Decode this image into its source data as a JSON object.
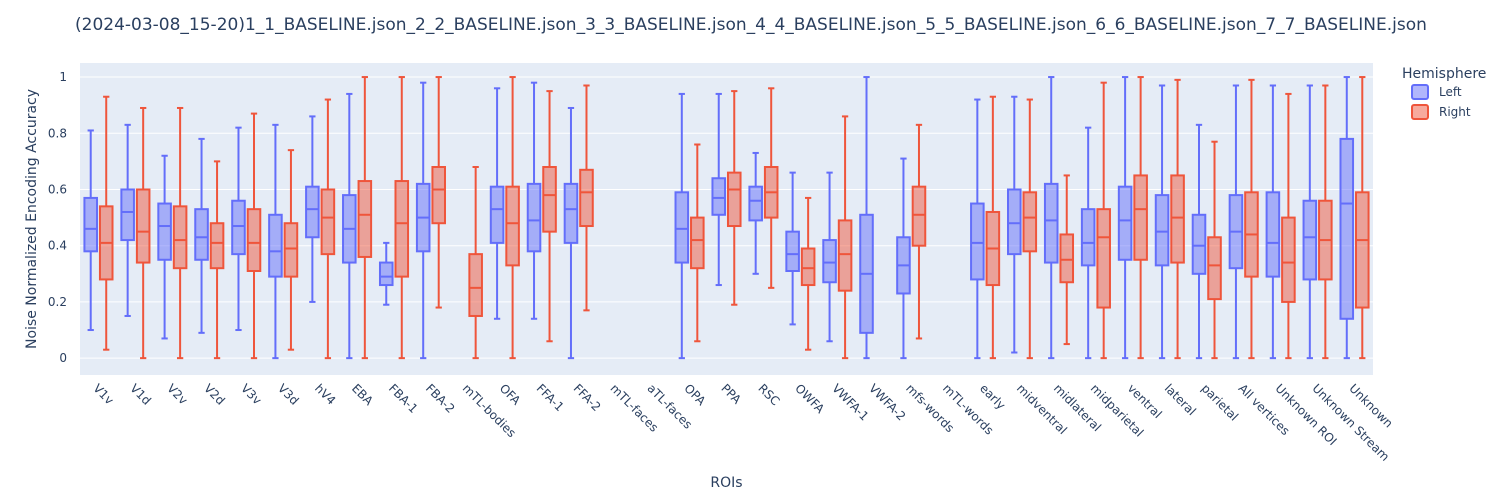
{
  "chart_data": {
    "type": "box",
    "title": "(2024-03-08_15-20)1_1_BASELINE.json_2_2_BASELINE.json_3_3_BASELINE.json_4_4_BASELINE.json_5_5_BASELINE.json_6_6_BASELINE.json_7_7_BASELINE.json",
    "xlabel": "ROIs",
    "ylabel": "Noise Normalized Encoding Accuracy",
    "ylim": [
      -0.06,
      1.05
    ],
    "yticks": [
      0,
      0.2,
      0.4,
      0.6,
      0.8,
      1
    ],
    "grid": true,
    "legend": {
      "title": "Hemisphere",
      "placement": "top-right"
    },
    "categories": [
      "V1v",
      "V1d",
      "V2v",
      "V2d",
      "V3v",
      "V3d",
      "hV4",
      "EBA",
      "FBA-1",
      "FBA-2",
      "mTL-bodies",
      "OFA",
      "FFA-1",
      "FFA-2",
      "mTL-faces",
      "aTL-faces",
      "OPA",
      "PPA",
      "RSC",
      "OWFA",
      "VWFA-1",
      "VWFA-2",
      "mfs-words",
      "mTL-words",
      "early",
      "midventral",
      "midlateral",
      "midparietal",
      "ventral",
      "lateral",
      "parietal",
      "All vertices",
      "Unknown ROI",
      "Unknown Stream",
      "Unknown"
    ],
    "series": [
      {
        "name": "Left",
        "color": "#636efa",
        "boxes": [
          {
            "min": 0.1,
            "q1": 0.38,
            "median": 0.46,
            "q3": 0.57,
            "max": 0.81
          },
          {
            "min": 0.15,
            "q1": 0.42,
            "median": 0.52,
            "q3": 0.6,
            "max": 0.83
          },
          {
            "min": 0.07,
            "q1": 0.35,
            "median": 0.47,
            "q3": 0.55,
            "max": 0.72
          },
          {
            "min": 0.09,
            "q1": 0.35,
            "median": 0.43,
            "q3": 0.53,
            "max": 0.78
          },
          {
            "min": 0.1,
            "q1": 0.37,
            "median": 0.47,
            "q3": 0.56,
            "max": 0.82
          },
          {
            "min": 0.0,
            "q1": 0.29,
            "median": 0.38,
            "q3": 0.51,
            "max": 0.83
          },
          {
            "min": 0.2,
            "q1": 0.43,
            "median": 0.53,
            "q3": 0.61,
            "max": 0.86
          },
          {
            "min": 0.0,
            "q1": 0.34,
            "median": 0.46,
            "q3": 0.58,
            "max": 0.94
          },
          {
            "min": 0.19,
            "q1": 0.26,
            "median": 0.29,
            "q3": 0.34,
            "max": 0.41
          },
          {
            "min": 0.0,
            "q1": 0.38,
            "median": 0.5,
            "q3": 0.62,
            "max": 0.98
          },
          null,
          {
            "min": 0.14,
            "q1": 0.41,
            "median": 0.53,
            "q3": 0.61,
            "max": 0.96
          },
          {
            "min": 0.14,
            "q1": 0.38,
            "median": 0.49,
            "q3": 0.62,
            "max": 0.98
          },
          {
            "min": 0.0,
            "q1": 0.41,
            "median": 0.53,
            "q3": 0.62,
            "max": 0.89
          },
          null,
          null,
          {
            "min": 0.0,
            "q1": 0.34,
            "median": 0.46,
            "q3": 0.59,
            "max": 0.94
          },
          {
            "min": 0.26,
            "q1": 0.51,
            "median": 0.57,
            "q3": 0.64,
            "max": 0.94
          },
          {
            "min": 0.3,
            "q1": 0.49,
            "median": 0.56,
            "q3": 0.61,
            "max": 0.73
          },
          {
            "min": 0.12,
            "q1": 0.31,
            "median": 0.37,
            "q3": 0.45,
            "max": 0.66
          },
          {
            "min": 0.06,
            "q1": 0.27,
            "median": 0.34,
            "q3": 0.42,
            "max": 0.66
          },
          {
            "min": 0.0,
            "q1": 0.09,
            "median": 0.3,
            "q3": 0.51,
            "max": 1.0
          },
          {
            "min": 0.0,
            "q1": 0.23,
            "median": 0.33,
            "q3": 0.43,
            "max": 0.71
          },
          null,
          {
            "min": 0.0,
            "q1": 0.28,
            "median": 0.41,
            "q3": 0.55,
            "max": 0.92
          },
          {
            "min": 0.02,
            "q1": 0.37,
            "median": 0.48,
            "q3": 0.6,
            "max": 0.93
          },
          {
            "min": 0.0,
            "q1": 0.34,
            "median": 0.49,
            "q3": 0.62,
            "max": 1.0
          },
          {
            "min": 0.0,
            "q1": 0.33,
            "median": 0.41,
            "q3": 0.53,
            "max": 0.82
          },
          {
            "min": 0.0,
            "q1": 0.35,
            "median": 0.49,
            "q3": 0.61,
            "max": 1.0
          },
          {
            "min": 0.0,
            "q1": 0.33,
            "median": 0.45,
            "q3": 0.58,
            "max": 0.97
          },
          {
            "min": 0.0,
            "q1": 0.3,
            "median": 0.4,
            "q3": 0.51,
            "max": 0.83
          },
          {
            "min": 0.0,
            "q1": 0.32,
            "median": 0.45,
            "q3": 0.58,
            "max": 0.97
          },
          {
            "min": 0.0,
            "q1": 0.29,
            "median": 0.41,
            "q3": 0.59,
            "max": 0.97
          },
          {
            "min": 0.0,
            "q1": 0.28,
            "median": 0.43,
            "q3": 0.56,
            "max": 0.97
          },
          {
            "min": 0.0,
            "q1": 0.14,
            "median": 0.55,
            "q3": 0.78,
            "max": 1.0
          }
        ]
      },
      {
        "name": "Right",
        "color": "#ef553b",
        "boxes": [
          {
            "min": 0.03,
            "q1": 0.28,
            "median": 0.41,
            "q3": 0.54,
            "max": 0.93
          },
          {
            "min": 0.0,
            "q1": 0.34,
            "median": 0.45,
            "q3": 0.6,
            "max": 0.89
          },
          {
            "min": 0.0,
            "q1": 0.32,
            "median": 0.42,
            "q3": 0.54,
            "max": 0.89
          },
          {
            "min": 0.0,
            "q1": 0.32,
            "median": 0.41,
            "q3": 0.48,
            "max": 0.7
          },
          {
            "min": 0.0,
            "q1": 0.31,
            "median": 0.41,
            "q3": 0.53,
            "max": 0.87
          },
          {
            "min": 0.03,
            "q1": 0.29,
            "median": 0.39,
            "q3": 0.48,
            "max": 0.74
          },
          {
            "min": 0.0,
            "q1": 0.37,
            "median": 0.5,
            "q3": 0.6,
            "max": 0.92
          },
          {
            "min": 0.0,
            "q1": 0.36,
            "median": 0.51,
            "q3": 0.63,
            "max": 1.0
          },
          {
            "min": 0.0,
            "q1": 0.29,
            "median": 0.48,
            "q3": 0.63,
            "max": 1.0
          },
          {
            "min": 0.18,
            "q1": 0.48,
            "median": 0.6,
            "q3": 0.68,
            "max": 1.0
          },
          {
            "min": 0.0,
            "q1": 0.15,
            "median": 0.25,
            "q3": 0.37,
            "max": 0.68
          },
          {
            "min": 0.0,
            "q1": 0.33,
            "median": 0.48,
            "q3": 0.61,
            "max": 1.0
          },
          {
            "min": 0.06,
            "q1": 0.45,
            "median": 0.58,
            "q3": 0.68,
            "max": 0.95
          },
          {
            "min": 0.17,
            "q1": 0.47,
            "median": 0.59,
            "q3": 0.67,
            "max": 0.97
          },
          null,
          null,
          {
            "min": 0.06,
            "q1": 0.32,
            "median": 0.42,
            "q3": 0.5,
            "max": 0.76
          },
          {
            "min": 0.19,
            "q1": 0.47,
            "median": 0.6,
            "q3": 0.66,
            "max": 0.95
          },
          {
            "min": 0.25,
            "q1": 0.5,
            "median": 0.59,
            "q3": 0.68,
            "max": 0.96
          },
          {
            "min": 0.03,
            "q1": 0.26,
            "median": 0.32,
            "q3": 0.39,
            "max": 0.57
          },
          {
            "min": 0.0,
            "q1": 0.24,
            "median": 0.37,
            "q3": 0.49,
            "max": 0.86
          },
          null,
          {
            "min": 0.07,
            "q1": 0.4,
            "median": 0.51,
            "q3": 0.61,
            "max": 0.83
          },
          null,
          {
            "min": 0.0,
            "q1": 0.26,
            "median": 0.39,
            "q3": 0.52,
            "max": 0.93
          },
          {
            "min": 0.0,
            "q1": 0.38,
            "median": 0.5,
            "q3": 0.59,
            "max": 0.92
          },
          {
            "min": 0.05,
            "q1": 0.27,
            "median": 0.35,
            "q3": 0.44,
            "max": 0.65
          },
          {
            "min": 0.0,
            "q1": 0.18,
            "median": 0.43,
            "q3": 0.53,
            "max": 0.98
          },
          {
            "min": 0.0,
            "q1": 0.35,
            "median": 0.53,
            "q3": 0.65,
            "max": 1.0
          },
          {
            "min": 0.0,
            "q1": 0.34,
            "median": 0.5,
            "q3": 0.65,
            "max": 0.99
          },
          {
            "min": 0.0,
            "q1": 0.21,
            "median": 0.33,
            "q3": 0.43,
            "max": 0.77
          },
          {
            "min": 0.0,
            "q1": 0.29,
            "median": 0.44,
            "q3": 0.59,
            "max": 0.99
          },
          {
            "min": 0.0,
            "q1": 0.2,
            "median": 0.34,
            "q3": 0.5,
            "max": 0.94
          },
          {
            "min": 0.0,
            "q1": 0.28,
            "median": 0.42,
            "q3": 0.56,
            "max": 0.97
          },
          {
            "min": 0.0,
            "q1": 0.18,
            "median": 0.42,
            "q3": 0.59,
            "max": 1.0
          }
        ]
      }
    ]
  }
}
